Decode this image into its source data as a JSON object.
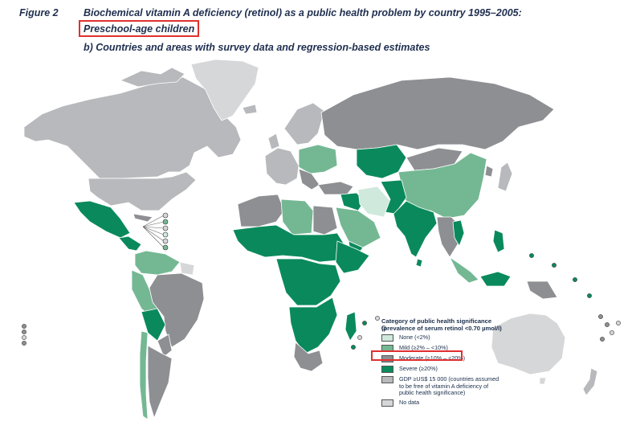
{
  "figure": {
    "label": "Figure 2",
    "title": "Biochemical vitamin A deficiency (retinol) as a public health problem by country 1995–2005:",
    "subtitle": "Preschool-age children",
    "part_title": "b) Countries and areas with survey data and regression-based estimates"
  },
  "legend": {
    "title": "Category of public health significance (prevalence of serum retinol <0.70 µmol/l)",
    "items": [
      {
        "label": "None (<2%)",
        "color": "#cfe9dc"
      },
      {
        "label": "Mild (≥2% – <10%)",
        "color": "#74b893"
      },
      {
        "label": "Moderate (≥10% – <20%)",
        "color": "#8e8f93"
      },
      {
        "label": "Severe (≥20%)",
        "color": "#0a8a5c"
      },
      {
        "label": "GDP ≥US$ 15 000 (countries assumed to be free of vitamin A deficiency of public health significance)",
        "color": "#b8b9bc"
      },
      {
        "label": "No data",
        "color": "#d6d7d9"
      }
    ]
  },
  "colors": {
    "ocean": "#ffffff",
    "none": "#cfe9dc",
    "mild": "#74b893",
    "moderate": "#8e8f93",
    "severe": "#0a8a5c",
    "gdp": "#b8b9bc",
    "nodata": "#d6d7d9",
    "border": "#ffffff",
    "highlight": "#e03030"
  }
}
